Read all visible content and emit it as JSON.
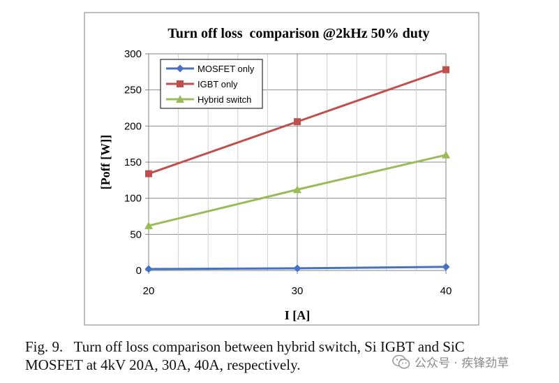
{
  "chart_data": {
    "type": "line",
    "title": "Turn off loss  comparison @2kHz 50% duty",
    "xlabel": "I [A]",
    "ylabel": "[Poff [W]]",
    "x": [
      20,
      30,
      40
    ],
    "x_ticks": [
      "20",
      "30",
      "40"
    ],
    "ylim": [
      0,
      300
    ],
    "y_ticks": [
      "0",
      "50",
      "100",
      "150",
      "200",
      "250",
      "300"
    ],
    "grid": true,
    "legend_position": "top-left",
    "series": [
      {
        "name": "MOSFET only",
        "values": [
          2,
          3,
          5
        ],
        "color": "#4472c4",
        "marker": "diamond"
      },
      {
        "name": "IGBT only",
        "values": [
          134,
          206,
          278
        ],
        "color": "#c0504d",
        "marker": "square"
      },
      {
        "name": "Hybrid switch",
        "values": [
          62,
          112,
          160
        ],
        "color": "#9bbb59",
        "marker": "triangle"
      }
    ]
  },
  "caption": {
    "line1": "Fig. 9.   Turn off loss comparison between hybrid switch, Si IGBT and SiC",
    "line2": "MOSFET at 4kV 20A, 30A, 40A, respectively."
  },
  "watermark": {
    "text": "公众号 · 疾锋劲草",
    "icon": "wechat-icon"
  }
}
